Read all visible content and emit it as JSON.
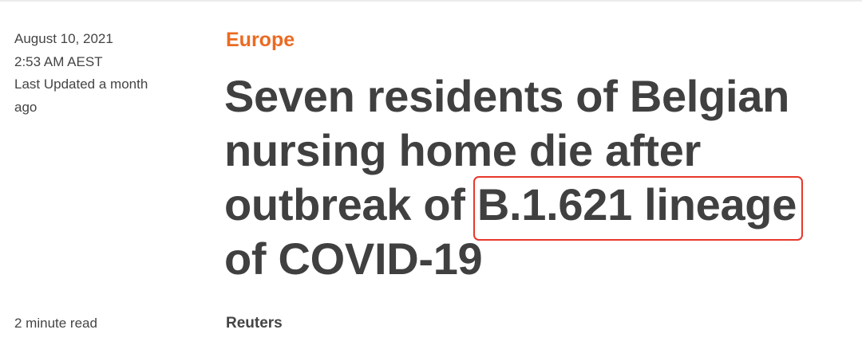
{
  "meta": {
    "date": "August 10, 2021",
    "time": "2:53 AM AEST",
    "updated_line1": "Last Updated a month",
    "updated_line2": "ago"
  },
  "section": "Europe",
  "headline": {
    "line1": "Seven residents of Belgian",
    "line2": "nursing home die after",
    "line3_prefix": "outbreak of ",
    "line3_highlight": "B.1.621 lineage",
    "line4": "of COVID-19"
  },
  "highlight_color": "#e8382c",
  "section_color": "#eb6a22",
  "read_time": "2 minute read",
  "byline": "Reuters"
}
